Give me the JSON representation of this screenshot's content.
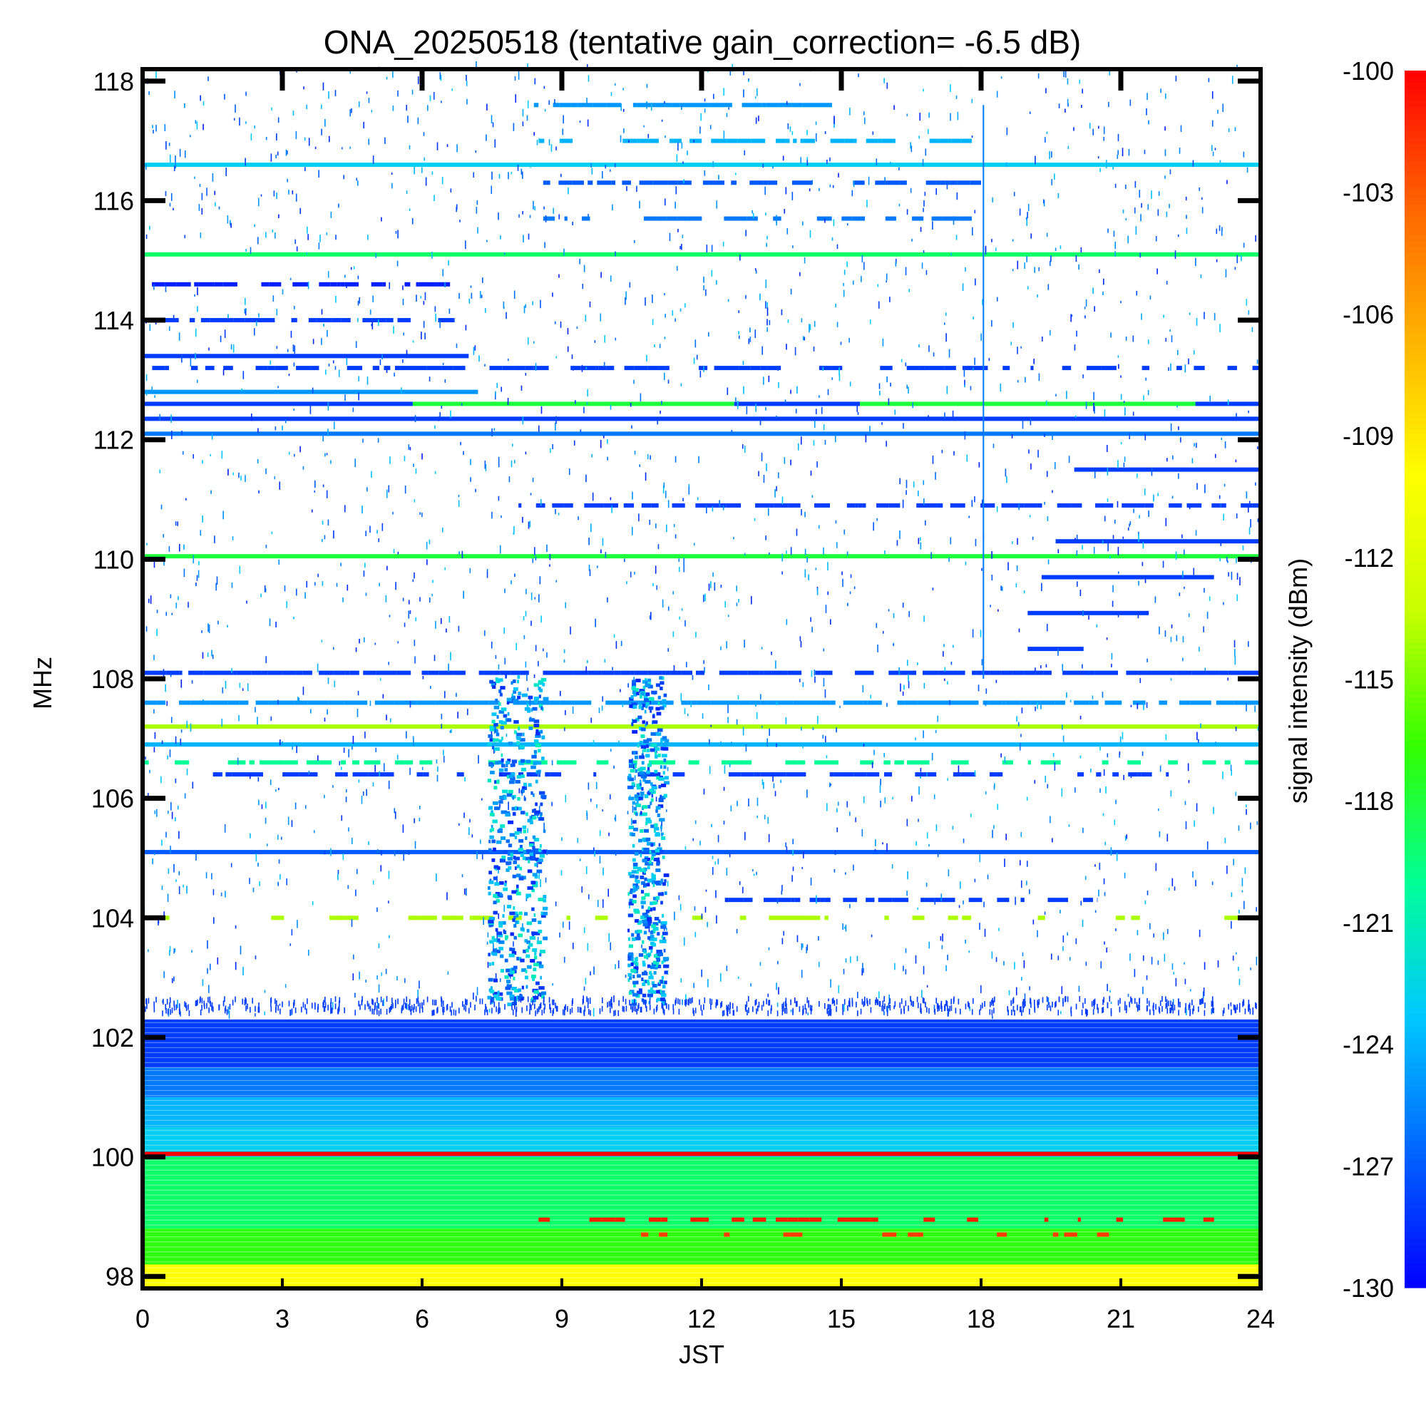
{
  "chart_data": {
    "type": "heatmap",
    "title": "ONA_20250518 (tentative gain_correction= -6.5 dB)",
    "xlabel": "JST",
    "ylabel": "MHz",
    "colorbar_label": "signal intensity (dBm)",
    "xlim": [
      0,
      24
    ],
    "ylim": [
      97.8,
      118.2
    ],
    "x_ticks": [
      0,
      3,
      6,
      9,
      12,
      15,
      18,
      21,
      24
    ],
    "x_tick_labels": [
      "0",
      "3",
      "6",
      "9",
      "12",
      "15",
      "18",
      "21",
      "24"
    ],
    "y_ticks": [
      98,
      100,
      102,
      104,
      106,
      108,
      110,
      112,
      114,
      116,
      118
    ],
    "y_tick_labels": [
      "98",
      "100",
      "102",
      "104",
      "106",
      "108",
      "110",
      "112",
      "114",
      "116",
      "118"
    ],
    "colorbar_range": [
      -130,
      -100
    ],
    "colorbar_ticks": [
      -100,
      -103,
      -106,
      -109,
      -112,
      -115,
      -118,
      -121,
      -124,
      -127,
      -130
    ],
    "colorbar_tick_labels": [
      "-100",
      "-103",
      "-106",
      "-109",
      "-112",
      "-115",
      "-118",
      "-121",
      "-124",
      "-127",
      "-130"
    ],
    "colormap": [
      "#0000ff",
      "#0064ff",
      "#00c8ff",
      "#00ff96",
      "#32ff00",
      "#c8ff00",
      "#ffff00",
      "#ffb400",
      "#ff6400",
      "#ff0000"
    ],
    "background_color": "#ffffff",
    "noise_floor_bands": [
      {
        "f_low": 97.8,
        "f_high": 98.2,
        "dbm": -110
      },
      {
        "f_low": 98.2,
        "f_high": 98.8,
        "dbm": -117
      },
      {
        "f_low": 98.8,
        "f_high": 100.0,
        "dbm": -119
      },
      {
        "f_low": 100.0,
        "f_high": 100.5,
        "dbm": -123
      },
      {
        "f_low": 100.5,
        "f_high": 101.0,
        "dbm": -124
      },
      {
        "f_low": 101.0,
        "f_high": 101.5,
        "dbm": -126
      },
      {
        "f_low": 101.5,
        "f_high": 102.3,
        "dbm": -128
      }
    ],
    "carriers": [
      {
        "freq": 100.05,
        "start": 0,
        "end": 24,
        "dbm": -100
      },
      {
        "freq": 98.95,
        "start": 8.5,
        "end": 23,
        "dbm": -101,
        "duty": 0.4
      },
      {
        "freq": 98.7,
        "start": 9.5,
        "end": 21,
        "dbm": -102,
        "duty": 0.3
      },
      {
        "freq": 116.6,
        "start": 0,
        "end": 24,
        "dbm": -123
      },
      {
        "freq": 115.1,
        "start": 0,
        "end": 24,
        "dbm": -119
      },
      {
        "freq": 113.4,
        "start": 0,
        "end": 7,
        "dbm": -128
      },
      {
        "freq": 114.0,
        "start": 0,
        "end": 6.7,
        "dbm": -128,
        "duty": 0.7
      },
      {
        "freq": 114.6,
        "start": 0.2,
        "end": 6.6,
        "dbm": -129,
        "duty": 0.5
      },
      {
        "freq": 112.8,
        "start": 0,
        "end": 7.2,
        "dbm": -125
      },
      {
        "freq": 112.6,
        "start": 0,
        "end": 5.8,
        "dbm": -128
      },
      {
        "freq": 112.6,
        "start": 5.8,
        "end": 12.7,
        "dbm": -118
      },
      {
        "freq": 112.6,
        "start": 12.7,
        "end": 15.4,
        "dbm": -128
      },
      {
        "freq": 112.6,
        "start": 15.4,
        "end": 22.6,
        "dbm": -118
      },
      {
        "freq": 112.6,
        "start": 22.6,
        "end": 24,
        "dbm": -128
      },
      {
        "freq": 112.35,
        "start": 0,
        "end": 24,
        "dbm": -128
      },
      {
        "freq": 112.1,
        "start": 0,
        "end": 24,
        "dbm": -126
      },
      {
        "freq": 113.2,
        "start": 0,
        "end": 24,
        "dbm": -128,
        "duty": 0.55
      },
      {
        "freq": 117.6,
        "start": 8.4,
        "end": 14.8,
        "dbm": -125,
        "duty": 0.8
      },
      {
        "freq": 117.0,
        "start": 8.5,
        "end": 17.8,
        "dbm": -124,
        "duty": 0.6
      },
      {
        "freq": 116.3,
        "start": 8.6,
        "end": 18.0,
        "dbm": -127,
        "duty": 0.6
      },
      {
        "freq": 115.7,
        "start": 8.6,
        "end": 17.8,
        "dbm": -126,
        "duty": 0.6
      },
      {
        "freq": 111.5,
        "start": 20.0,
        "end": 24,
        "dbm": -128
      },
      {
        "freq": 110.9,
        "start": 8.0,
        "end": 24,
        "dbm": -128,
        "duty": 0.6
      },
      {
        "freq": 110.3,
        "start": 19.6,
        "end": 24,
        "dbm": -128
      },
      {
        "freq": 110.05,
        "start": 0,
        "end": 24,
        "dbm": -118
      },
      {
        "freq": 109.7,
        "start": 19.3,
        "end": 23,
        "dbm": -128
      },
      {
        "freq": 109.1,
        "start": 19.0,
        "end": 21.6,
        "dbm": -128
      },
      {
        "freq": 108.5,
        "start": 19.0,
        "end": 20.2,
        "dbm": -128
      },
      {
        "freq": 108.1,
        "start": 0,
        "end": 24,
        "dbm": -128,
        "duty": 0.85
      },
      {
        "freq": 107.6,
        "start": 0,
        "end": 24,
        "dbm": -125,
        "duty": 0.85
      },
      {
        "freq": 107.2,
        "start": 0,
        "end": 24,
        "dbm": -114
      },
      {
        "freq": 106.9,
        "start": 0,
        "end": 24,
        "dbm": -124
      },
      {
        "freq": 106.6,
        "start": 0,
        "end": 24,
        "dbm": -120,
        "duty": 0.5
      },
      {
        "freq": 106.4,
        "start": 0,
        "end": 24,
        "dbm": -128,
        "duty": 0.5
      },
      {
        "freq": 105.1,
        "start": 0,
        "end": 24,
        "dbm": -127
      },
      {
        "freq": 104.3,
        "start": 12.5,
        "end": 20.5,
        "dbm": -128,
        "duty": 0.8
      },
      {
        "freq": 104.0,
        "start": 0,
        "end": 24,
        "dbm": -114,
        "duty": 0.3
      }
    ]
  }
}
